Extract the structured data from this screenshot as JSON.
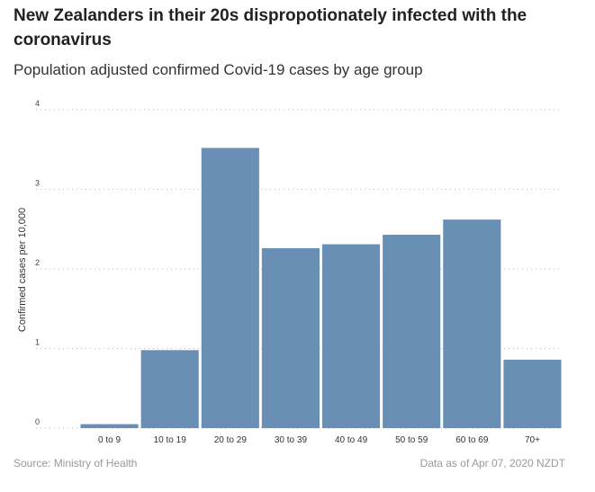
{
  "title": "New Zealanders in their 20s dispropotionately infected with the coronavirus",
  "subtitle": "Population adjusted confirmed Covid-19 cases by age group",
  "chart_data": {
    "type": "bar",
    "categories": [
      "0 to 9",
      "10 to 19",
      "20 to 29",
      "30 to 39",
      "40 to 49",
      "50 to 59",
      "60 to 69",
      "70+"
    ],
    "values": [
      0.05,
      0.98,
      3.52,
      2.26,
      2.31,
      2.43,
      2.62,
      0.86
    ],
    "ylabel": "Confirmed cases per 10,000",
    "ylim": [
      0,
      4
    ],
    "yticks": [
      "0",
      "1",
      "2",
      "3",
      "4"
    ],
    "grid": true,
    "bar_color": "#6a8fb5"
  },
  "footer": {
    "source": "Source: Ministry of Health",
    "as_of": "Data as of Apr 07, 2020 NZDT"
  }
}
